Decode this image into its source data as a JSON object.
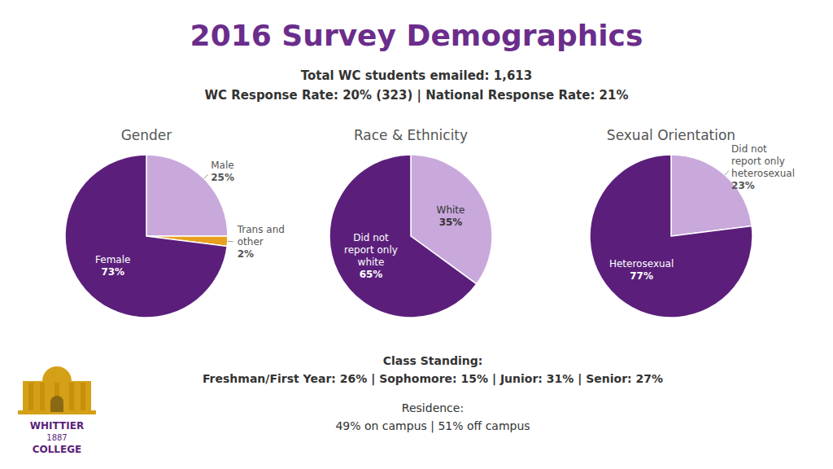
{
  "title": "2016 Survey Demographics",
  "subtitle": [
    "Total WC students emailed: 1,613",
    "WC Response Rate: 20% (323)  |  National Response Rate: 21%"
  ],
  "annotations": [
    "Class Standing:",
    "Freshman/First Year: 26%  |  Sophomore: 15%  |  Junior: 31%  |  Senior: 27%",
    "Residence:",
    "49% on campus | 51% off campus",
    "WHITTIER",
    "1887",
    "COLLEGE"
  ],
  "chart_data": [
    {
      "type": "pie",
      "title": "Gender",
      "categories": [
        "Male",
        "Trans and other",
        "Female"
      ],
      "values": [
        25,
        2,
        73
      ],
      "value_labels": [
        "25%",
        "2%",
        "73%"
      ],
      "colors": [
        "#C9A8DC",
        "#E8A020",
        "#5B1F7B"
      ],
      "data_labels": true
    },
    {
      "type": "pie",
      "title": "Race & Ethnicity",
      "categories": [
        "White",
        "Did not report only white"
      ],
      "values": [
        35,
        65
      ],
      "value_labels": [
        "35%",
        "65%"
      ],
      "colors": [
        "#C9A8DC",
        "#5B1F7B"
      ],
      "data_labels": true
    },
    {
      "type": "pie",
      "title": "Sexual Orientation",
      "categories": [
        "Did not report only heterosexual",
        "Heterosexual"
      ],
      "values": [
        23,
        77
      ],
      "value_labels": [
        "23%",
        "77%"
      ],
      "colors": [
        "#C9A8DC",
        "#5B1F7B"
      ],
      "data_labels": true
    }
  ]
}
